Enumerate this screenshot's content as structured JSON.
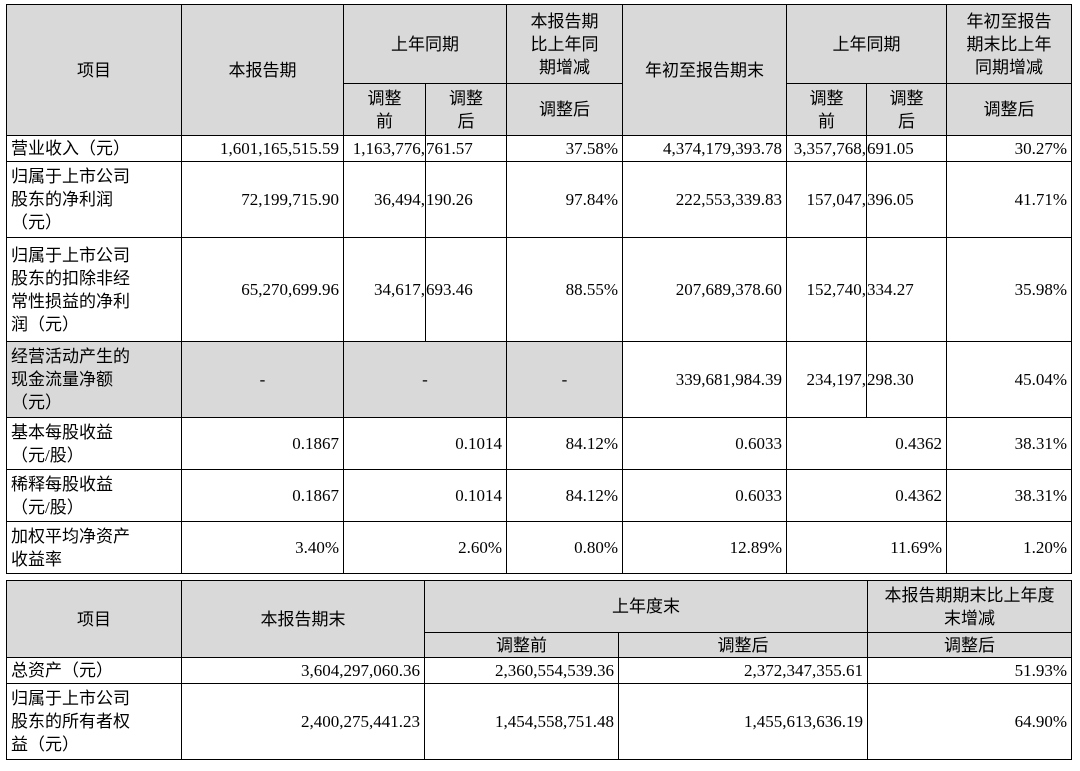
{
  "t1": {
    "head": {
      "item": "项目",
      "cur": "本报告期",
      "prev": "上年同期",
      "chg": "本报告期比上年同期增减",
      "chg_l1": "本报告期",
      "chg_l2": "比上年同",
      "chg_l3": "期增减",
      "ytd": "年初至报告期末",
      "prev2": "上年同期",
      "ytdchg_l1": "年初至报告",
      "ytdchg_l2": "期末比上年",
      "ytdchg_l3": "同期增减",
      "before_1": "调整",
      "before_2": "前",
      "after_1": "调整",
      "after_2": "后",
      "adjusted": "调整后"
    },
    "rows": [
      {
        "label_lines": [
          "营业收入（元）"
        ],
        "cur": "1,601,165,515.59",
        "prev_split": [
          "1,163,776,",
          "761.57"
        ],
        "chg": "37.58%",
        "ytd": "4,374,179,393.78",
        "prev2_split": [
          "3,357,768,",
          "691.05"
        ],
        "ytdchg": "30.27%"
      },
      {
        "label_lines": [
          "归属于上市公司",
          "股东的净利润",
          "（元）"
        ],
        "cur": "72,199,715.90",
        "prev_split": [
          "36,494,",
          "190.26"
        ],
        "chg": "97.84%",
        "ytd": "222,553,339.83",
        "prev2_split": [
          "157,047,",
          "396.05"
        ],
        "ytdchg": "41.71%"
      },
      {
        "label_lines": [
          "归属于上市公司",
          "股东的扣除非经",
          "常性损益的净利",
          "润（元）"
        ],
        "cur": "65,270,699.96",
        "prev_split": [
          "34,617,",
          "693.46"
        ],
        "chg": "88.55%",
        "ytd": "207,689,378.60",
        "prev2_split": [
          "152,740,",
          "334.27"
        ],
        "ytdchg": "35.98%"
      },
      {
        "label_lines": [
          "经营活动产生的",
          "现金流量净额",
          "（元）"
        ],
        "cur": "-",
        "prev": "-",
        "chg": "-",
        "ytd": "339,681,984.39",
        "prev2_split": [
          "234,197,",
          "298.30"
        ],
        "ytdchg": "45.04%"
      },
      {
        "label_lines": [
          "基本每股收益",
          "（元/股）"
        ],
        "cur": "0.1867",
        "prev": "0.1014",
        "chg": "84.12%",
        "ytd": "0.6033",
        "prev2": "0.4362",
        "ytdchg": "38.31%"
      },
      {
        "label_lines": [
          "稀释每股收益",
          "（元/股）"
        ],
        "cur": "0.1867",
        "prev": "0.1014",
        "chg": "84.12%",
        "ytd": "0.6033",
        "prev2": "0.4362",
        "ytdchg": "38.31%"
      },
      {
        "label_lines": [
          "加权平均净资产",
          "收益率"
        ],
        "cur": "3.40%",
        "prev": "2.60%",
        "chg": "0.80%",
        "ytd": "12.89%",
        "prev2": "11.69%",
        "ytdchg": "1.20%"
      }
    ]
  },
  "t2": {
    "head": {
      "item": "项目",
      "cur": "本报告期末",
      "prevyear": "上年度末",
      "chg_l1": "本报告期期末比上年度",
      "chg_l2": "末增减",
      "before": "调整前",
      "after": "调整后",
      "adjusted": "调整后"
    },
    "rows": [
      {
        "label_lines": [
          "总资产（元）"
        ],
        "cur": "3,604,297,060.36",
        "before": "2,360,554,539.36",
        "after": "2,372,347,355.61",
        "chg": "51.93%"
      },
      {
        "label_lines": [
          "归属于上市公司",
          "股东的所有者权",
          "益（元）"
        ],
        "cur": "2,400,275,441.23",
        "before": "1,454,558,751.48",
        "after": "1,455,613,636.19",
        "chg": "64.90%"
      }
    ]
  }
}
